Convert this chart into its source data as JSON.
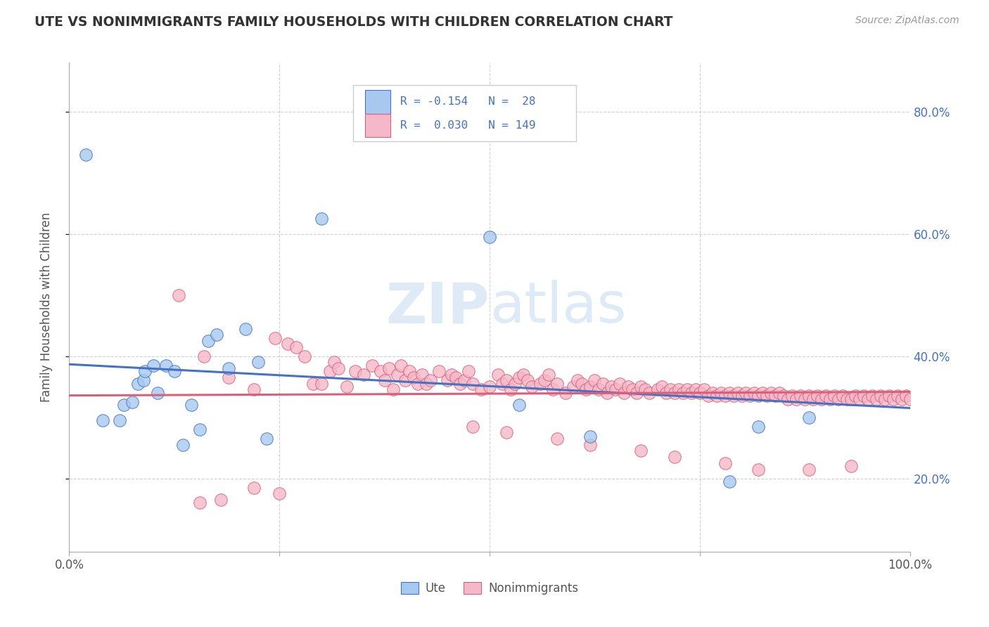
{
  "title": "UTE VS NONIMMIGRANTS FAMILY HOUSEHOLDS WITH CHILDREN CORRELATION CHART",
  "source": "Source: ZipAtlas.com",
  "ylabel": "Family Households with Children",
  "xlim": [
    0.0,
    1.0
  ],
  "ylim": [
    0.08,
    0.88
  ],
  "yticks": [
    0.2,
    0.4,
    0.6,
    0.8
  ],
  "yticklabels": [
    "20.0%",
    "40.0%",
    "60.0%",
    "80.0%"
  ],
  "ute_color": "#a8c8f0",
  "nonimm_color": "#f4b8c8",
  "ute_line_color": "#4472c4",
  "nonimm_line_color": "#d9607a",
  "watermark_zip": "ZIP",
  "watermark_atlas": "atlas",
  "background_color": "#ffffff",
  "ute_R": -0.154,
  "nonimm_R": 0.03,
  "ute_x": [
    0.02,
    0.04,
    0.06,
    0.065,
    0.075,
    0.082,
    0.088,
    0.09,
    0.1,
    0.105,
    0.115,
    0.125,
    0.135,
    0.145,
    0.155,
    0.165,
    0.175,
    0.19,
    0.21,
    0.225,
    0.235,
    0.3,
    0.5,
    0.535,
    0.62,
    0.785,
    0.82,
    0.88
  ],
  "ute_y": [
    0.73,
    0.295,
    0.295,
    0.32,
    0.325,
    0.355,
    0.36,
    0.375,
    0.385,
    0.34,
    0.385,
    0.375,
    0.255,
    0.32,
    0.28,
    0.425,
    0.435,
    0.38,
    0.445,
    0.39,
    0.265,
    0.625,
    0.595,
    0.32,
    0.268,
    0.195,
    0.285,
    0.3
  ],
  "nonimm_x": [
    0.13,
    0.16,
    0.19,
    0.22,
    0.245,
    0.26,
    0.27,
    0.28,
    0.29,
    0.3,
    0.31,
    0.315,
    0.32,
    0.33,
    0.34,
    0.35,
    0.36,
    0.37,
    0.375,
    0.38,
    0.385,
    0.39,
    0.395,
    0.4,
    0.405,
    0.41,
    0.415,
    0.42,
    0.425,
    0.43,
    0.44,
    0.45,
    0.455,
    0.46,
    0.465,
    0.47,
    0.475,
    0.48,
    0.49,
    0.5,
    0.51,
    0.515,
    0.52,
    0.525,
    0.53,
    0.535,
    0.54,
    0.545,
    0.55,
    0.56,
    0.565,
    0.57,
    0.575,
    0.58,
    0.59,
    0.6,
    0.605,
    0.61,
    0.615,
    0.62,
    0.625,
    0.63,
    0.635,
    0.64,
    0.645,
    0.65,
    0.655,
    0.66,
    0.665,
    0.67,
    0.675,
    0.68,
    0.685,
    0.69,
    0.7,
    0.705,
    0.71,
    0.715,
    0.72,
    0.725,
    0.73,
    0.735,
    0.74,
    0.745,
    0.75,
    0.755,
    0.76,
    0.765,
    0.77,
    0.775,
    0.78,
    0.785,
    0.79,
    0.795,
    0.8,
    0.805,
    0.81,
    0.815,
    0.82,
    0.825,
    0.83,
    0.835,
    0.84,
    0.845,
    0.85,
    0.855,
    0.86,
    0.865,
    0.87,
    0.875,
    0.88,
    0.885,
    0.89,
    0.895,
    0.9,
    0.905,
    0.91,
    0.915,
    0.92,
    0.925,
    0.93,
    0.935,
    0.94,
    0.945,
    0.95,
    0.955,
    0.96,
    0.965,
    0.97,
    0.975,
    0.98,
    0.985,
    0.99,
    0.995,
    1.0,
    0.22,
    0.25,
    0.18,
    0.155,
    0.48,
    0.52,
    0.58,
    0.62,
    0.68,
    0.72,
    0.78,
    0.82,
    0.88,
    0.93
  ],
  "nonimm_y": [
    0.5,
    0.4,
    0.365,
    0.345,
    0.43,
    0.42,
    0.415,
    0.4,
    0.355,
    0.355,
    0.375,
    0.39,
    0.38,
    0.35,
    0.375,
    0.37,
    0.385,
    0.375,
    0.36,
    0.38,
    0.345,
    0.37,
    0.385,
    0.36,
    0.375,
    0.365,
    0.355,
    0.37,
    0.355,
    0.36,
    0.375,
    0.36,
    0.37,
    0.365,
    0.355,
    0.36,
    0.375,
    0.355,
    0.345,
    0.35,
    0.37,
    0.355,
    0.36,
    0.345,
    0.355,
    0.365,
    0.37,
    0.36,
    0.35,
    0.355,
    0.36,
    0.37,
    0.345,
    0.355,
    0.34,
    0.35,
    0.36,
    0.355,
    0.345,
    0.35,
    0.36,
    0.345,
    0.355,
    0.34,
    0.35,
    0.345,
    0.355,
    0.34,
    0.35,
    0.345,
    0.34,
    0.35,
    0.345,
    0.34,
    0.345,
    0.35,
    0.34,
    0.345,
    0.34,
    0.345,
    0.34,
    0.345,
    0.34,
    0.345,
    0.34,
    0.345,
    0.335,
    0.34,
    0.335,
    0.34,
    0.335,
    0.34,
    0.335,
    0.34,
    0.335,
    0.34,
    0.335,
    0.34,
    0.335,
    0.34,
    0.335,
    0.34,
    0.335,
    0.34,
    0.335,
    0.33,
    0.335,
    0.33,
    0.335,
    0.33,
    0.335,
    0.33,
    0.335,
    0.33,
    0.335,
    0.33,
    0.335,
    0.33,
    0.335,
    0.33,
    0.33,
    0.335,
    0.33,
    0.335,
    0.33,
    0.335,
    0.33,
    0.335,
    0.33,
    0.335,
    0.33,
    0.335,
    0.33,
    0.335,
    0.33,
    0.185,
    0.175,
    0.165,
    0.16,
    0.285,
    0.275,
    0.265,
    0.255,
    0.245,
    0.235,
    0.225,
    0.215,
    0.215,
    0.22
  ]
}
